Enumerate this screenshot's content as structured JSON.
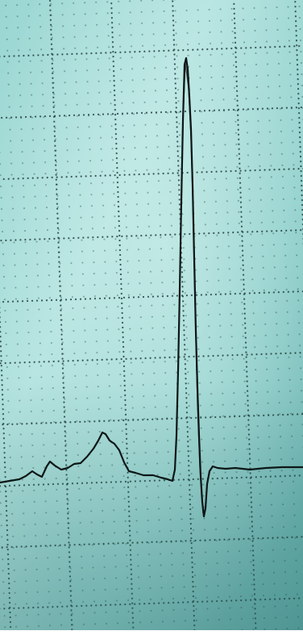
{
  "image": {
    "subject": "ecg-paper-closeup",
    "colors": {
      "paper_light": "#a9dcd8",
      "paper_mid": "#86c8c4",
      "paper_dark": "#4f9e9b",
      "grid_dots": "#1c3a38",
      "trace": "#0c1716"
    }
  }
}
